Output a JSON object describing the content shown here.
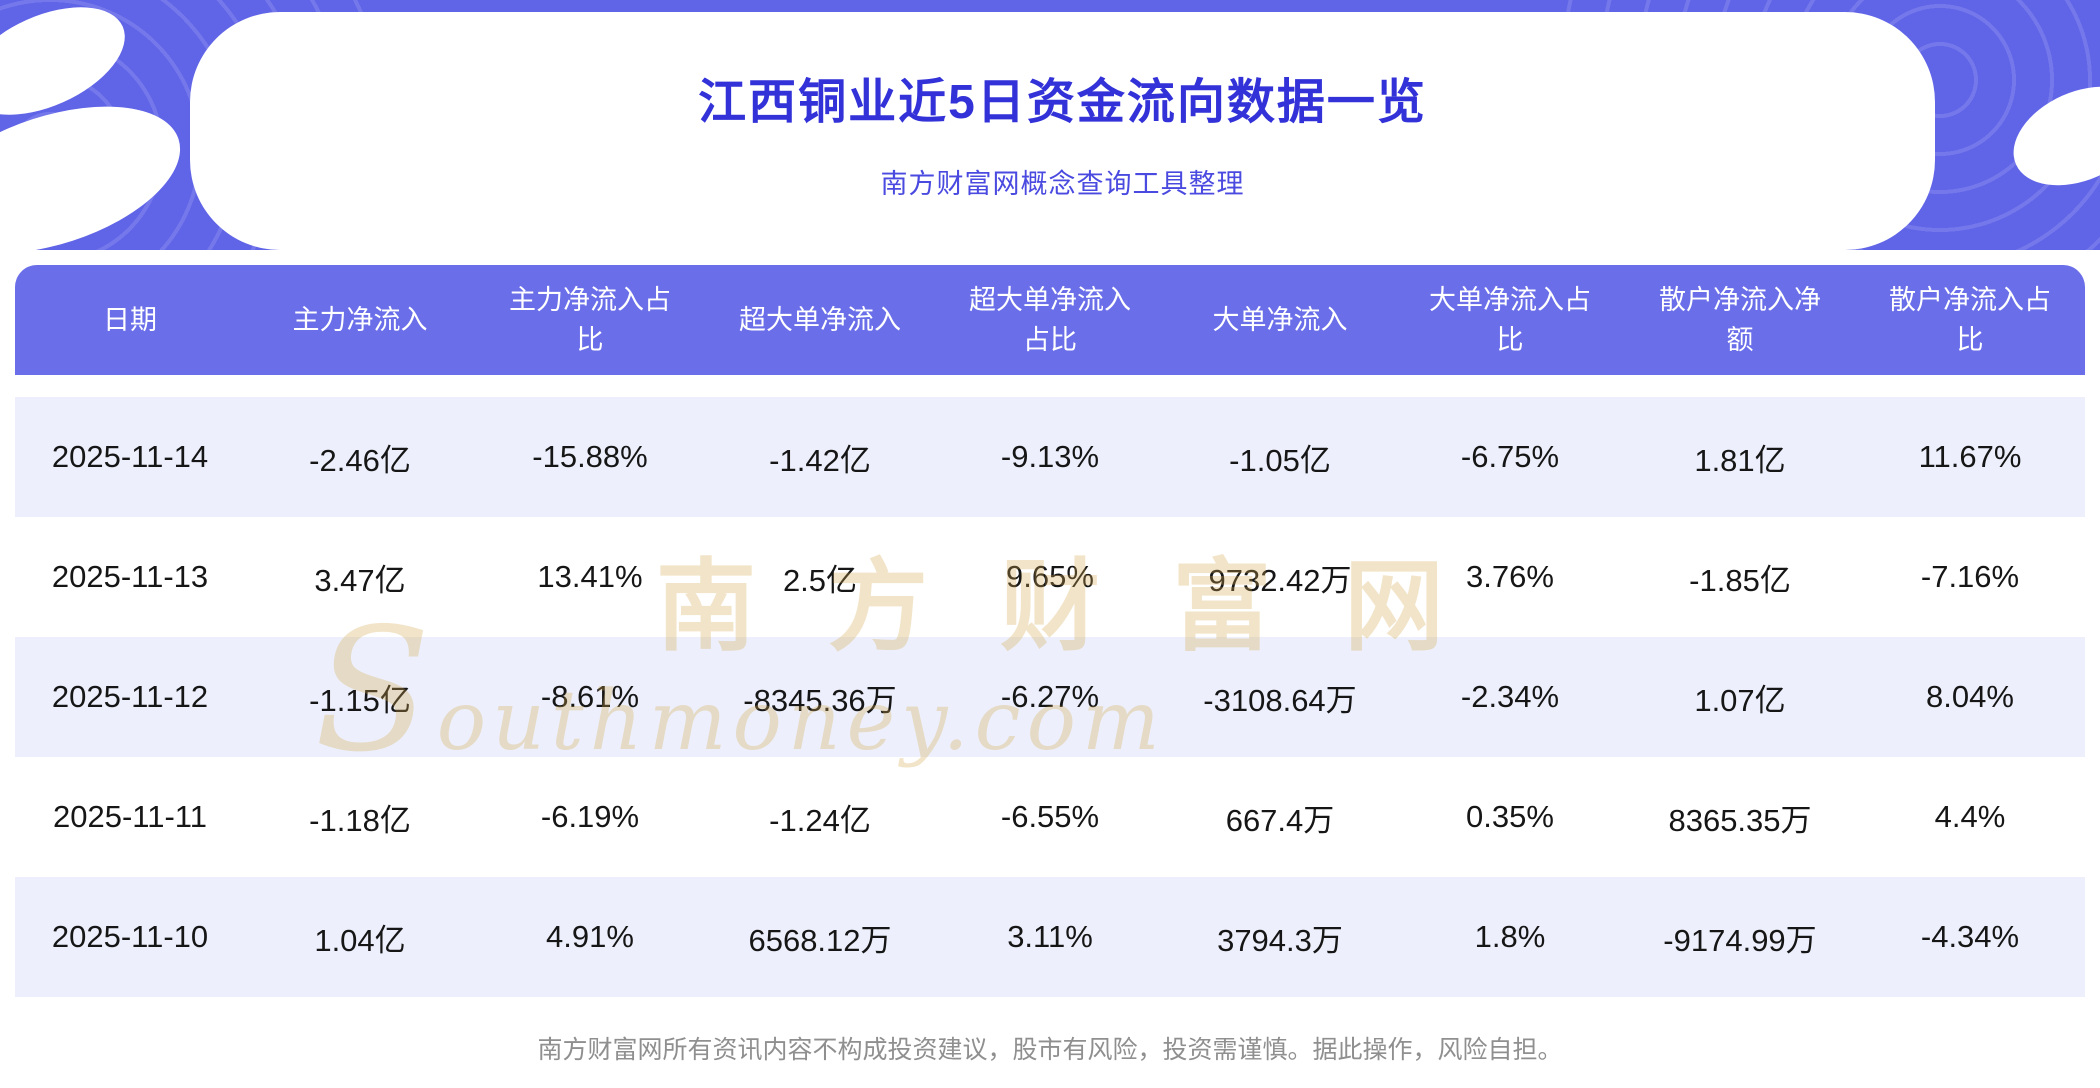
{
  "page": {
    "title": "江西铜业近5日资金流向数据一览",
    "subtitle": "南方财富网概念查询工具整理",
    "footer_disclaimer": "南方财富网所有资讯内容不构成投资建议，股市有风险，投资需谨慎。据此操作，风险自担。"
  },
  "watermark": {
    "cn": "南方财富网",
    "en": "Southmoney.com"
  },
  "chart_data": {
    "type": "table",
    "title": "江西铜业近5日资金流向数据一览",
    "columns": [
      "日期",
      "主力净流入",
      "主力净流入占比",
      "超大单净流入",
      "超大单净流入占比",
      "大单净流入",
      "大单净流入占比",
      "散户净流入净额",
      "散户净流入占比"
    ],
    "rows": [
      [
        "2025-11-14",
        "-2.46亿",
        "-15.88%",
        "-1.42亿",
        "-9.13%",
        "-1.05亿",
        "-6.75%",
        "1.81亿",
        "11.67%"
      ],
      [
        "2025-11-13",
        "3.47亿",
        "13.41%",
        "2.5亿",
        "9.65%",
        "9732.42万",
        "3.76%",
        "-1.85亿",
        "-7.16%"
      ],
      [
        "2025-11-12",
        "-1.15亿",
        "-8.61%",
        "-8345.36万",
        "-6.27%",
        "-3108.64万",
        "-2.34%",
        "1.07亿",
        "8.04%"
      ],
      [
        "2025-11-11",
        "-1.18亿",
        "-6.19%",
        "-1.24亿",
        "-6.55%",
        "667.4万",
        "0.35%",
        "8365.35万",
        "4.4%"
      ],
      [
        "2025-11-10",
        "1.04亿",
        "4.91%",
        "6568.12万",
        "3.11%",
        "3794.3万",
        "1.8%",
        "-9174.99万",
        "-4.34%"
      ]
    ]
  },
  "colors": {
    "banner_bg": "#6064e7",
    "card_bg": "#ffffff",
    "title_text": "#3232d8",
    "subtitle_text": "#4a4ae0",
    "table_header_bg": "#6a6ee9",
    "table_header_text": "#ffffff",
    "row_alt_bg": "#edf0fc",
    "cell_text": "#161616",
    "watermark": "#d6a84e",
    "footer_text": "#8f8f8f"
  }
}
